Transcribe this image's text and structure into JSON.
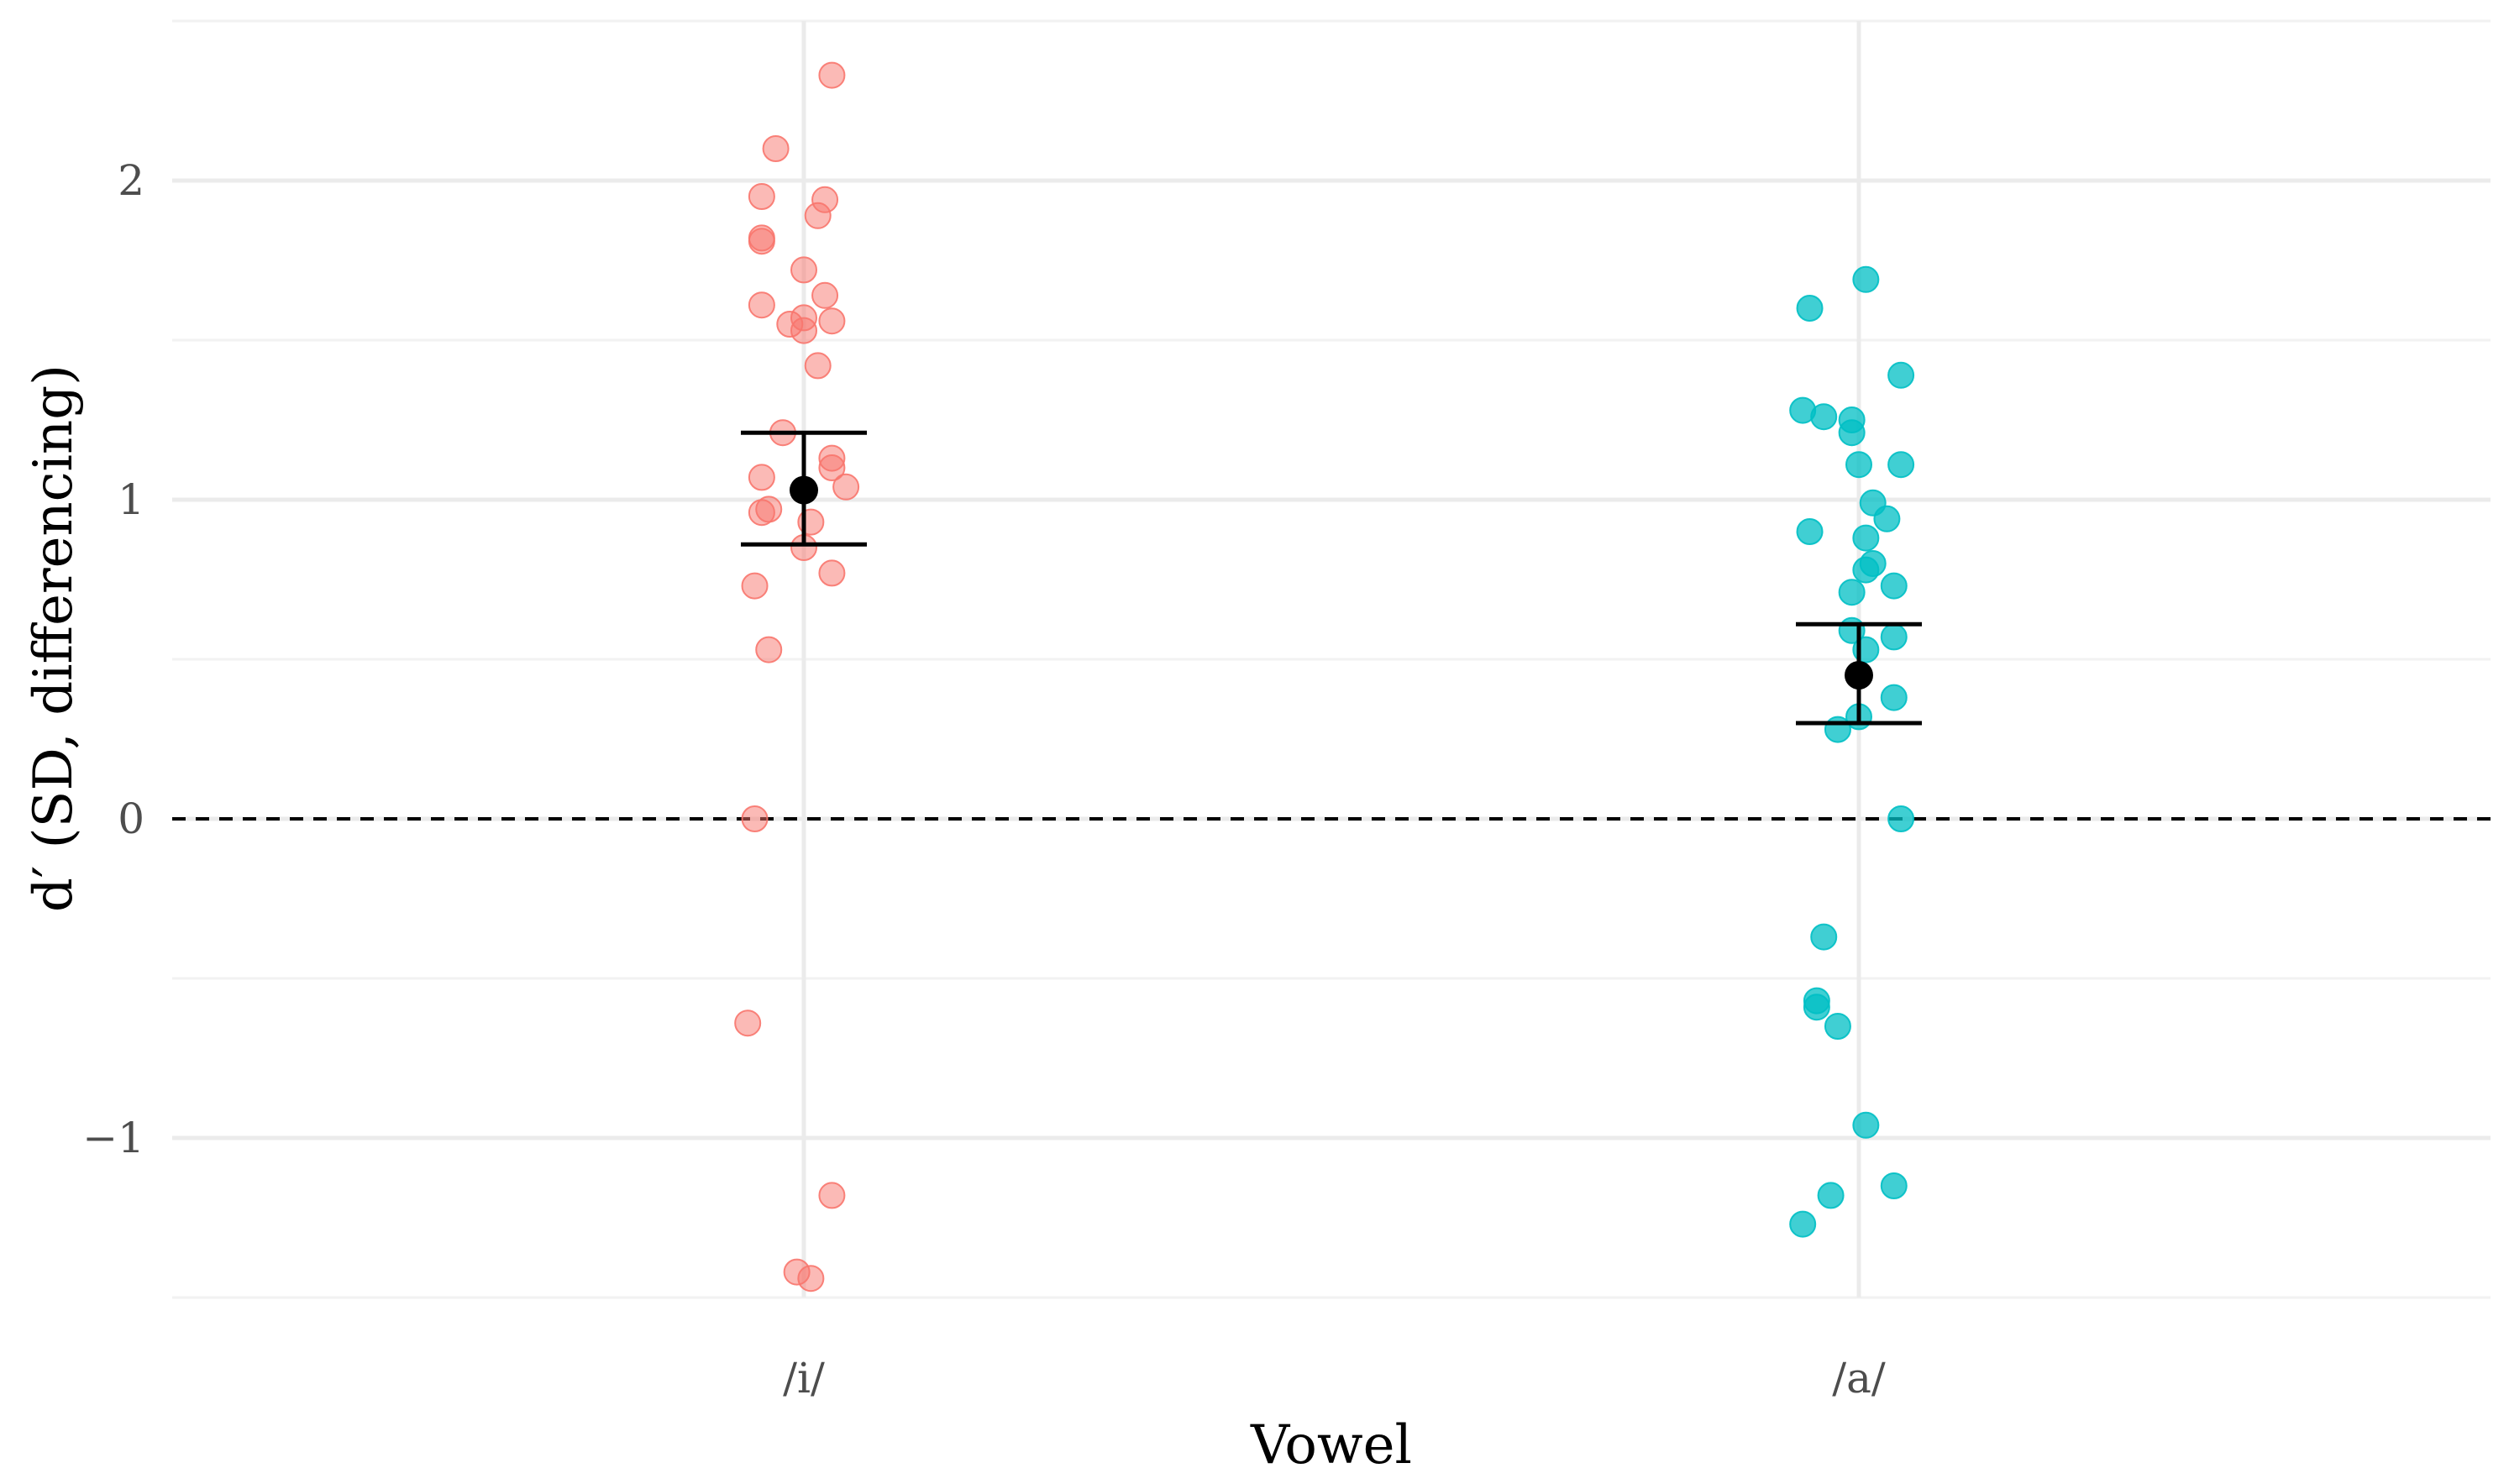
{
  "chart_data": {
    "type": "scatter",
    "title": "",
    "xlabel": "Vowel",
    "ylabel": "d′ (SD, differencing)",
    "categories": [
      "/i/",
      "/a/"
    ],
    "ylim": [
      -1.5,
      2.5
    ],
    "yticks": [
      -1,
      0,
      1,
      2
    ],
    "ytick_labels": [
      "−1",
      "0",
      "1",
      "2"
    ],
    "grid": true,
    "legend": "none",
    "reference_line": {
      "y": 0,
      "style": "dashed"
    },
    "colors": {
      "/i/": "#F8766D",
      "/a/": "#00BFC4",
      "summary": "#000000"
    },
    "series": [
      {
        "category": "/i/",
        "points": [
          {
            "x": 0.04,
            "y": 2.33
          },
          {
            "x": -0.04,
            "y": 2.1
          },
          {
            "x": -0.06,
            "y": 1.95
          },
          {
            "x": 0.03,
            "y": 1.94
          },
          {
            "x": 0.02,
            "y": 1.89
          },
          {
            "x": -0.06,
            "y": 1.82
          },
          {
            "x": -0.06,
            "y": 1.81
          },
          {
            "x": 0.0,
            "y": 1.72
          },
          {
            "x": 0.03,
            "y": 1.64
          },
          {
            "x": -0.06,
            "y": 1.61
          },
          {
            "x": 0.0,
            "y": 1.57
          },
          {
            "x": 0.04,
            "y": 1.56
          },
          {
            "x": -0.02,
            "y": 1.55
          },
          {
            "x": 0.0,
            "y": 1.53
          },
          {
            "x": 0.02,
            "y": 1.42
          },
          {
            "x": -0.03,
            "y": 1.21
          },
          {
            "x": 0.04,
            "y": 1.13
          },
          {
            "x": 0.04,
            "y": 1.1
          },
          {
            "x": -0.06,
            "y": 1.07
          },
          {
            "x": 0.06,
            "y": 1.04
          },
          {
            "x": -0.05,
            "y": 0.97
          },
          {
            "x": -0.06,
            "y": 0.96
          },
          {
            "x": 0.01,
            "y": 0.93
          },
          {
            "x": 0.0,
            "y": 0.85
          },
          {
            "x": 0.04,
            "y": 0.77
          },
          {
            "x": -0.07,
            "y": 0.73
          },
          {
            "x": -0.05,
            "y": 0.53
          },
          {
            "x": -0.07,
            "y": 0.0
          },
          {
            "x": -0.08,
            "y": -0.64
          },
          {
            "x": 0.04,
            "y": -1.18
          },
          {
            "x": -0.01,
            "y": -1.42
          },
          {
            "x": 0.01,
            "y": -1.44
          }
        ],
        "mean": 1.03,
        "ci": [
          0.86,
          1.21
        ]
      },
      {
        "category": "/a/",
        "points": [
          {
            "x": 0.01,
            "y": 1.69
          },
          {
            "x": -0.07,
            "y": 1.6
          },
          {
            "x": 0.06,
            "y": 1.39
          },
          {
            "x": -0.08,
            "y": 1.28
          },
          {
            "x": -0.05,
            "y": 1.26
          },
          {
            "x": -0.01,
            "y": 1.25
          },
          {
            "x": -0.01,
            "y": 1.21
          },
          {
            "x": 0.0,
            "y": 1.11
          },
          {
            "x": 0.06,
            "y": 1.11
          },
          {
            "x": 0.02,
            "y": 0.99
          },
          {
            "x": 0.04,
            "y": 0.94
          },
          {
            "x": -0.07,
            "y": 0.9
          },
          {
            "x": 0.01,
            "y": 0.88
          },
          {
            "x": 0.02,
            "y": 0.8
          },
          {
            "x": 0.01,
            "y": 0.78
          },
          {
            "x": 0.05,
            "y": 0.73
          },
          {
            "x": -0.01,
            "y": 0.71
          },
          {
            "x": -0.01,
            "y": 0.59
          },
          {
            "x": 0.05,
            "y": 0.57
          },
          {
            "x": 0.01,
            "y": 0.53
          },
          {
            "x": 0.05,
            "y": 0.38
          },
          {
            "x": 0.0,
            "y": 0.32
          },
          {
            "x": -0.03,
            "y": 0.28
          },
          {
            "x": 0.06,
            "y": 0.0
          },
          {
            "x": -0.05,
            "y": -0.37
          },
          {
            "x": -0.06,
            "y": -0.57
          },
          {
            "x": -0.06,
            "y": -0.59
          },
          {
            "x": -0.03,
            "y": -0.65
          },
          {
            "x": 0.01,
            "y": -0.96
          },
          {
            "x": 0.05,
            "y": -1.15
          },
          {
            "x": -0.04,
            "y": -1.18
          },
          {
            "x": -0.08,
            "y": -1.27
          }
        ],
        "mean": 0.45,
        "ci": [
          0.3,
          0.61
        ]
      }
    ]
  }
}
